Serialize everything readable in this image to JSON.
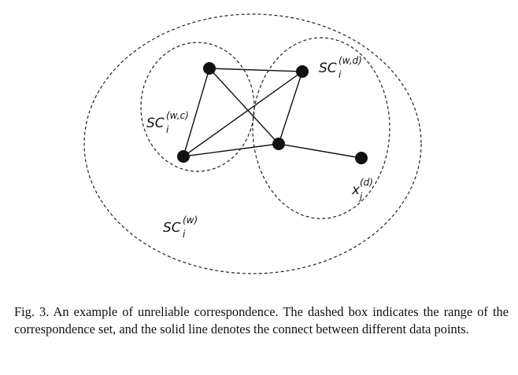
{
  "diagram": {
    "labels": {
      "outer": {
        "base": "SC",
        "sup": "(w)",
        "sub": "i"
      },
      "left": {
        "base": "SC",
        "sup": "(w,c)",
        "sub": "i"
      },
      "right": {
        "base": "SC",
        "sup": "(w,d)",
        "sub": "i"
      },
      "point": {
        "base": "x",
        "sup": "(d)",
        "sub": "j"
      }
    }
  },
  "caption": {
    "text": "Fig. 3.  An example of unreliable correspondence. The dashed box indicates the range of the correspondence set, and the solid line denotes the connect between different data points."
  }
}
